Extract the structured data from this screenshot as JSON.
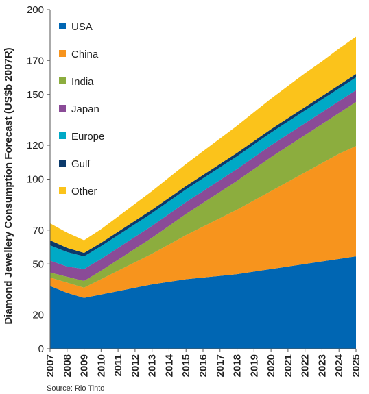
{
  "chart_data": {
    "type": "area",
    "stacked": true,
    "ylabel": "Diamond Jewellery Consumption Forecast (US$b 2007R)",
    "xlabel": "",
    "ylim": [
      0,
      200
    ],
    "y_ticks": [
      0,
      20,
      50,
      70,
      100,
      120,
      150,
      170,
      200
    ],
    "x": [
      "2007",
      "2008",
      "2009",
      "2010",
      "2011",
      "2012",
      "2013",
      "2014",
      "2015",
      "2016",
      "2017",
      "2018",
      "2019",
      "2020",
      "2021",
      "2022",
      "2023",
      "2024",
      "2025"
    ],
    "legend_position": "top-left",
    "grid": false,
    "source": "Source: Rio Tinto",
    "series": [
      {
        "name": "USA",
        "color": "#0066b3",
        "values": [
          37,
          33,
          30,
          32,
          34,
          36,
          38,
          39.5,
          41,
          42,
          43,
          44,
          45.5,
          47,
          48.5,
          50,
          51.5,
          53,
          54.5
        ]
      },
      {
        "name": "China",
        "color": "#f7941d",
        "values": [
          5,
          6,
          6,
          9,
          12,
          15,
          18,
          22,
          26,
          30,
          34,
          38,
          42,
          46,
          50,
          54,
          58,
          62,
          65
        ]
      },
      {
        "name": "India",
        "color": "#8cad3e",
        "values": [
          3,
          3.5,
          4,
          5,
          6.5,
          8,
          9.5,
          11,
          12.5,
          14,
          15.5,
          17,
          18.5,
          20,
          21,
          22,
          23,
          24,
          26
        ]
      },
      {
        "name": "Japan",
        "color": "#8a4b97",
        "values": [
          7,
          6,
          7,
          7,
          7,
          7,
          7,
          7,
          7,
          7,
          7,
          7,
          7,
          7,
          7,
          7,
          7,
          7,
          7
        ]
      },
      {
        "name": "Europe",
        "color": "#00a9c6",
        "values": [
          9,
          8.5,
          7.5,
          7.5,
          7.5,
          7.5,
          7.5,
          7.5,
          7.5,
          7.5,
          7.5,
          7.5,
          7.5,
          7.5,
          7.5,
          7.5,
          7.5,
          7.5,
          7.5
        ]
      },
      {
        "name": "Gulf",
        "color": "#0b3a6b",
        "values": [
          3,
          2.5,
          2,
          2,
          2,
          2,
          2,
          2,
          2,
          2,
          2,
          2,
          2,
          2,
          2,
          2,
          2,
          2,
          2
        ]
      },
      {
        "name": "Other",
        "color": "#fbc31b",
        "values": [
          10,
          9,
          7.5,
          8,
          9,
          10,
          11,
          12,
          13,
          14,
          15,
          16,
          17,
          18,
          19,
          20,
          20.5,
          21.5,
          22
        ]
      }
    ]
  }
}
